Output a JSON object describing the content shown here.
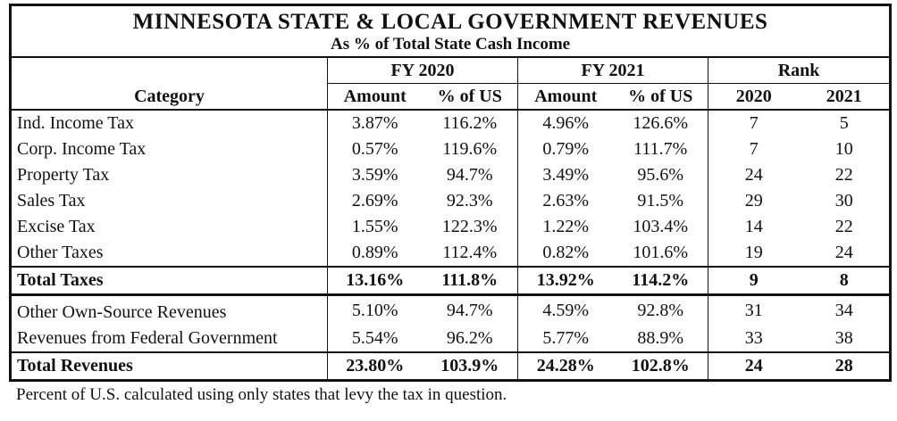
{
  "title": "MINNESOTA STATE & LOCAL GOVERNMENT REVENUES",
  "subtitle": "As % of Total State Cash Income",
  "headers": {
    "category": "Category",
    "fy2020": "FY 2020",
    "fy2021": "FY 2021",
    "rank": "Rank",
    "amount": "Amount",
    "pct_us": "% of US",
    "rank_2020": "2020",
    "rank_2021": "2021"
  },
  "rows": [
    {
      "category": "Ind. Income Tax",
      "amt20": "3.87%",
      "pct20": "116.2%",
      "amt21": "4.96%",
      "pct21": "126.6%",
      "rank20": "7",
      "rank21": "5"
    },
    {
      "category": "Corp. Income Tax",
      "amt20": "0.57%",
      "pct20": "119.6%",
      "amt21": "0.79%",
      "pct21": "111.7%",
      "rank20": "7",
      "rank21": "10"
    },
    {
      "category": "Property Tax",
      "amt20": "3.59%",
      "pct20": "94.7%",
      "amt21": "3.49%",
      "pct21": "95.6%",
      "rank20": "24",
      "rank21": "22"
    },
    {
      "category": "Sales Tax",
      "amt20": "2.69%",
      "pct20": "92.3%",
      "amt21": "2.63%",
      "pct21": "91.5%",
      "rank20": "29",
      "rank21": "30"
    },
    {
      "category": "Excise Tax",
      "amt20": "1.55%",
      "pct20": "122.3%",
      "amt21": "1.22%",
      "pct21": "103.4%",
      "rank20": "14",
      "rank21": "22"
    },
    {
      "category": "Other Taxes",
      "amt20": "0.89%",
      "pct20": "112.4%",
      "amt21": "0.82%",
      "pct21": "101.6%",
      "rank20": "19",
      "rank21": "24"
    },
    {
      "category": "Total Taxes",
      "amt20": "13.16%",
      "pct20": "111.8%",
      "amt21": "13.92%",
      "pct21": "114.2%",
      "rank20": "9",
      "rank21": "8"
    },
    {
      "category": "Other Own-Source Revenues",
      "amt20": "5.10%",
      "pct20": "94.7%",
      "amt21": "4.59%",
      "pct21": "92.8%",
      "rank20": "31",
      "rank21": "34"
    },
    {
      "category": "Revenues from Federal Government",
      "amt20": "5.54%",
      "pct20": "96.2%",
      "amt21": "5.77%",
      "pct21": "88.9%",
      "rank20": "33",
      "rank21": "38"
    },
    {
      "category": "Total Revenues",
      "amt20": "23.80%",
      "pct20": "103.9%",
      "amt21": "24.28%",
      "pct21": "102.8%",
      "rank20": "24",
      "rank21": "28"
    }
  ],
  "footnote": "Percent of U.S. calculated using only states that levy the tax in question."
}
